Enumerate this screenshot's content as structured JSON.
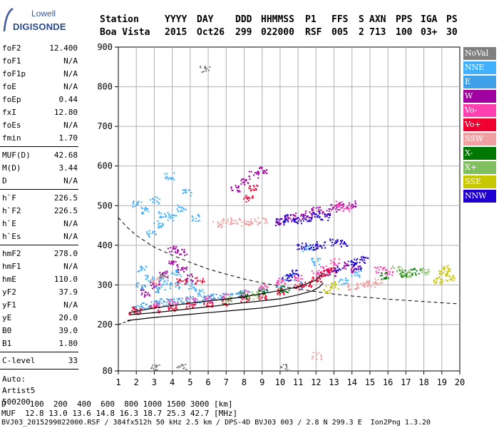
{
  "logo": {
    "line1": "Lowell",
    "line2": "DIGISONDE"
  },
  "header": {
    "row1": [
      "Station",
      "YYYY",
      "DAY",
      "DDD",
      "HHMMSS",
      "P1",
      "FFS",
      "S",
      "AXN",
      "PPS",
      "IGA",
      "PS"
    ],
    "row2": [
      "Boa Vista",
      "2015",
      "Oct26",
      "299",
      "022000",
      "RSF",
      "005",
      "2",
      "713",
      "100",
      "03+",
      "30"
    ]
  },
  "params_group1": [
    {
      "k": "foF2",
      "v": "12.400"
    },
    {
      "k": "foF1",
      "v": "N/A"
    },
    {
      "k": "foF1p",
      "v": "N/A"
    },
    {
      "k": "foE",
      "v": "N/A"
    },
    {
      "k": "foEp",
      "v": "0.44"
    },
    {
      "k": "fxI",
      "v": "12.80"
    },
    {
      "k": "foEs",
      "v": "N/A"
    },
    {
      "k": "fmin",
      "v": "1.70"
    }
  ],
  "params_group2": [
    {
      "k": "MUF(D)",
      "v": "42.68"
    },
    {
      "k": "M(D)",
      "v": "3.44"
    },
    {
      "k": "D",
      "v": "N/A"
    }
  ],
  "params_group3": [
    {
      "k": "h`F",
      "v": "226.5"
    },
    {
      "k": "h`F2",
      "v": "226.5"
    },
    {
      "k": "h`E",
      "v": "N/A"
    },
    {
      "k": "h`Es",
      "v": "N/A"
    }
  ],
  "params_group4": [
    {
      "k": "hmF2",
      "v": "278.0"
    },
    {
      "k": "hmF1",
      "v": "N/A"
    },
    {
      "k": "hmE",
      "v": "110.0"
    },
    {
      "k": "yF2",
      "v": "37.9"
    },
    {
      "k": "yF1",
      "v": "N/A"
    },
    {
      "k": "yE",
      "v": "20.0"
    },
    {
      "k": "B0",
      "v": "39.0"
    },
    {
      "k": "B1",
      "v": "1.80"
    }
  ],
  "clevel": {
    "k": "C-level",
    "v": "33"
  },
  "auto": {
    "line1": "Auto:",
    "line2": "Artist5",
    "line3": "500200"
  },
  "footer": {
    "d_row": "D     100  200  400  600  800 1000 1500 3000 [km]",
    "muf_row": "MUF  12.8 13.0 13.6 14.8 16.3 18.7 25.3 42.7 [MHz]",
    "file_row": "BVJ03_2015299022000.RSF / 384fx512h 50 kHz 2.5 km / DPS-4D BVJ03 003 / 2.8 N 299.3 E  Ion2Png 1.3.20"
  },
  "legend": [
    {
      "label": "NoVal",
      "color": "#808080"
    },
    {
      "label": "NNE",
      "color": "#40b0ff"
    },
    {
      "label": "E",
      "color": "#40a0e8"
    },
    {
      "label": "W",
      "color": "#a000a0"
    },
    {
      "label": "Vo-",
      "color": "#ff40b0"
    },
    {
      "label": "Vo+",
      "color": "#f00030"
    },
    {
      "label": "SSW",
      "color": "#f0a0a0"
    },
    {
      "label": "X-",
      "color": "#007800"
    },
    {
      "label": "X+",
      "color": "#80c060"
    },
    {
      "label": "SSE",
      "color": "#c8c800"
    },
    {
      "label": "NNW",
      "color": "#2000d0"
    }
  ],
  "chart_data": {
    "type": "scatter",
    "title": "",
    "xlabel": "",
    "ylabel": "",
    "xlim": [
      1,
      20
    ],
    "ylim": [
      80,
      900
    ],
    "xticks": [
      1,
      2,
      3,
      4,
      5,
      6,
      7,
      8,
      9,
      10,
      11,
      12,
      13,
      14,
      15,
      16,
      17,
      18,
      19,
      20
    ],
    "yticks": [
      80,
      200,
      300,
      400,
      500,
      600,
      700,
      800,
      900
    ],
    "grid": true,
    "legend_placement": "right",
    "series": [
      {
        "name": "NNE",
        "color": "#40b0ff",
        "points": [
          [
            2.0,
            505
          ],
          [
            2.5,
            490
          ],
          [
            3.0,
            515
          ],
          [
            3.5,
            480
          ],
          [
            4.0,
            470
          ],
          [
            4.5,
            495
          ],
          [
            3.2,
            455
          ],
          [
            2.8,
            430
          ],
          [
            2.3,
            340
          ],
          [
            2.7,
            320
          ],
          [
            3.5,
            310
          ],
          [
            4.2,
            330
          ],
          [
            5.0,
            300
          ],
          [
            5.5,
            285
          ],
          [
            6.0,
            270
          ],
          [
            11.5,
            395
          ],
          [
            12.0,
            360
          ],
          [
            13.5,
            310
          ],
          [
            14.2,
            330
          ],
          [
            4.8,
            535
          ],
          [
            3.8,
            575
          ],
          [
            5.3,
            470
          ]
        ]
      },
      {
        "name": "E",
        "color": "#40a0e8",
        "points": [
          [
            2.0,
            240
          ],
          [
            2.5,
            250
          ],
          [
            3.0,
            255
          ],
          [
            3.5,
            258
          ],
          [
            4.0,
            260
          ],
          [
            4.5,
            262
          ],
          [
            5.0,
            265
          ],
          [
            5.5,
            265
          ],
          [
            6.0,
            267
          ],
          [
            6.5,
            270
          ],
          [
            7.0,
            272
          ],
          [
            7.5,
            275
          ],
          [
            8.0,
            280
          ],
          [
            9.0,
            285
          ],
          [
            10.0,
            290
          ],
          [
            11.0,
            300
          ],
          [
            2.2,
            300
          ],
          [
            3.3,
            290
          ],
          [
            4.1,
            300
          ],
          [
            10.5,
            320
          ]
        ]
      },
      {
        "name": "W",
        "color": "#a000a0",
        "points": [
          [
            2.5,
            280
          ],
          [
            3.0,
            300
          ],
          [
            3.5,
            330
          ],
          [
            4.0,
            355
          ],
          [
            4.5,
            340
          ],
          [
            5.0,
            320
          ],
          [
            8.0,
            560
          ],
          [
            8.5,
            580
          ],
          [
            9.0,
            590
          ],
          [
            7.5,
            545
          ],
          [
            10.0,
            460
          ],
          [
            10.5,
            470
          ],
          [
            11.0,
            475
          ],
          [
            11.5,
            480
          ],
          [
            12.0,
            490
          ],
          [
            12.5,
            485
          ],
          [
            13.0,
            495
          ],
          [
            13.5,
            500
          ],
          [
            14.0,
            505
          ],
          [
            13.8,
            350
          ],
          [
            14.2,
            340
          ],
          [
            12.8,
            330
          ],
          [
            4.0,
            390
          ],
          [
            4.5,
            385
          ]
        ]
      },
      {
        "name": "Vo-",
        "color": "#ff40b0",
        "points": [
          [
            3.0,
            250
          ],
          [
            4.0,
            255
          ],
          [
            5.0,
            260
          ],
          [
            6.0,
            265
          ],
          [
            7.0,
            270
          ],
          [
            8.0,
            280
          ],
          [
            9.0,
            295
          ],
          [
            10.0,
            310
          ],
          [
            11.0,
            320
          ],
          [
            12.0,
            330
          ],
          [
            12.5,
            340
          ],
          [
            13.0,
            360
          ],
          [
            16.0,
            335
          ],
          [
            15.5,
            340
          ],
          [
            13.2,
            505
          ],
          [
            13.7,
            495
          ]
        ]
      },
      {
        "name": "Vo+",
        "color": "#f00030",
        "points": [
          [
            1.8,
            235
          ],
          [
            2.0,
            236
          ],
          [
            3.0,
            240
          ],
          [
            4.0,
            244
          ],
          [
            5.0,
            248
          ],
          [
            6.0,
            254
          ],
          [
            7.0,
            258
          ],
          [
            8.0,
            263
          ],
          [
            9.0,
            270
          ],
          [
            10.0,
            285
          ],
          [
            11.0,
            298
          ],
          [
            11.5,
            305
          ],
          [
            12.0,
            318
          ],
          [
            12.5,
            330
          ],
          [
            12.8,
            340
          ],
          [
            8.5,
            545
          ],
          [
            8.2,
            520
          ],
          [
            5.5,
            312
          ],
          [
            4.5,
            310
          ]
        ]
      },
      {
        "name": "SSW",
        "color": "#f0a0a0",
        "points": [
          [
            7.0,
            460
          ],
          [
            7.5,
            462
          ],
          [
            8.0,
            458
          ],
          [
            8.5,
            460
          ],
          [
            9.0,
            462
          ],
          [
            6.5,
            455
          ],
          [
            14.5,
            300
          ],
          [
            15.0,
            305
          ],
          [
            15.5,
            310
          ],
          [
            14.0,
            295
          ],
          [
            3.0,
            310
          ],
          [
            12.0,
            120
          ]
        ]
      },
      {
        "name": "X-",
        "color": "#007800",
        "points": [
          [
            16.8,
            330
          ],
          [
            17.5,
            335
          ],
          [
            15.8,
            325
          ],
          [
            8.0,
            275
          ],
          [
            9.0,
            282
          ],
          [
            10.2,
            290
          ]
        ]
      },
      {
        "name": "X+",
        "color": "#80c060",
        "points": [
          [
            16.5,
            340
          ],
          [
            17.0,
            330
          ],
          [
            18.0,
            335
          ],
          [
            7.0,
            262
          ],
          [
            8.5,
            275
          ]
        ]
      },
      {
        "name": "SSE",
        "color": "#c8c800",
        "points": [
          [
            19.0,
            330
          ],
          [
            19.2,
            345
          ],
          [
            19.4,
            320
          ],
          [
            18.8,
            310
          ],
          [
            12.6,
            290
          ],
          [
            13.0,
            300
          ]
        ]
      },
      {
        "name": "NNW",
        "color": "#2000d0",
        "points": [
          [
            10.0,
            460
          ],
          [
            10.5,
            470
          ],
          [
            11.0,
            465
          ],
          [
            11.5,
            470
          ],
          [
            12.0,
            478
          ],
          [
            12.5,
            472
          ],
          [
            11.2,
            400
          ],
          [
            11.8,
            395
          ],
          [
            12.2,
            402
          ],
          [
            13.0,
            410
          ],
          [
            13.5,
            405
          ],
          [
            14.0,
            360
          ],
          [
            14.3,
            350
          ],
          [
            14.6,
            365
          ],
          [
            10.8,
            330
          ],
          [
            10.3,
            320
          ],
          [
            13.2,
            340
          ]
        ]
      },
      {
        "name": "NoVal",
        "color": "#808080",
        "points": [
          [
            5.8,
            845
          ],
          [
            3.5,
            325
          ],
          [
            4.5,
            90
          ],
          [
            3.0,
            90
          ],
          [
            10.2,
            90
          ]
        ]
      }
    ],
    "profile_line": {
      "color": "#000000",
      "points": [
        [
          1.7,
          225
        ],
        [
          3,
          230
        ],
        [
          4,
          235
        ],
        [
          5,
          240
        ],
        [
          6,
          245
        ],
        [
          7,
          250
        ],
        [
          8,
          255
        ],
        [
          9,
          260
        ],
        [
          10,
          265
        ],
        [
          11,
          275
        ],
        [
          11.8,
          285
        ],
        [
          12.2,
          295
        ],
        [
          12.4,
          305
        ]
      ]
    },
    "upper_trace_line": {
      "color": "#000000",
      "points": [
        [
          1.6,
          230
        ],
        [
          3,
          242
        ],
        [
          4,
          248
        ],
        [
          5,
          254
        ],
        [
          6,
          260
        ],
        [
          7,
          264
        ],
        [
          8,
          270
        ],
        [
          9,
          278
        ],
        [
          10,
          286
        ],
        [
          11,
          295
        ],
        [
          12,
          312
        ],
        [
          12.4,
          330
        ]
      ]
    },
    "lower_trace_line": {
      "color": "#000000",
      "points": [
        [
          1.5,
          210
        ],
        [
          3,
          218
        ],
        [
          4,
          222
        ],
        [
          5,
          226
        ],
        [
          6,
          230
        ],
        [
          7,
          234
        ],
        [
          8,
          238
        ],
        [
          9,
          242
        ],
        [
          10,
          248
        ],
        [
          11,
          255
        ],
        [
          12,
          262
        ],
        [
          12.4,
          270
        ]
      ]
    },
    "dashed_curve": {
      "color": "#000000",
      "points": [
        [
          1.0,
          470
        ],
        [
          1.5,
          445
        ],
        [
          2.0,
          425
        ],
        [
          3.0,
          395
        ],
        [
          4.0,
          375
        ],
        [
          5.0,
          357
        ],
        [
          6.0,
          340
        ],
        [
          7.0,
          327
        ],
        [
          8.0,
          315
        ],
        [
          9.0,
          305
        ],
        [
          10.0,
          297
        ],
        [
          11.0,
          290
        ],
        [
          12.0,
          283
        ],
        [
          13.0,
          277
        ],
        [
          14.0,
          272
        ],
        [
          16.0,
          264
        ],
        [
          18.0,
          258
        ],
        [
          20.0,
          252
        ]
      ]
    },
    "dashed_curve_low": {
      "color": "#000000",
      "points": [
        [
          1.0,
          200
        ],
        [
          1.3,
          205
        ],
        [
          1.5,
          208
        ],
        [
          1.8,
          212
        ]
      ]
    }
  }
}
